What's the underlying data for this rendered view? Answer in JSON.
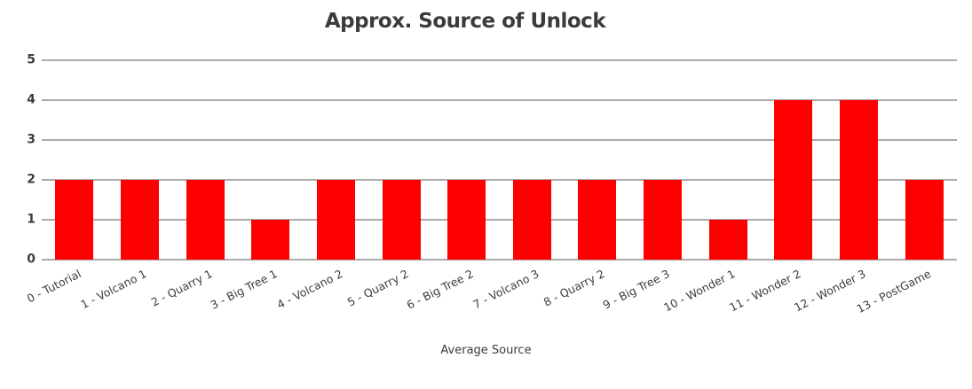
{
  "chart_data": {
    "type": "bar",
    "title": "Approx. Source of Unlock",
    "xlabel": "Average Source",
    "ylabel": "",
    "categories": [
      "0 - Tutorial",
      "1 - Volcano 1",
      "2 - Quarry 1",
      "3 - Big Tree 1",
      "4 - Volcano 2",
      "5 - Quarry 2",
      "6 - Big Tree 2",
      "7 - Volcano 3",
      "8 - Quarry 2",
      "9 - Big Tree 3",
      "10 - Wonder 1",
      "11 - Wonder 2",
      "12 - Wonder 3",
      "13 - PostGame"
    ],
    "values": [
      2,
      2,
      2,
      1,
      2,
      2,
      2,
      2,
      2,
      2,
      1,
      4,
      4,
      2
    ],
    "ylim": [
      0,
      5
    ],
    "yticks": [
      0,
      1,
      2,
      3,
      4,
      5
    ],
    "grid": true,
    "legend_position": "none",
    "colors": {
      "bar": "#ff0000",
      "grid": "#ababab",
      "tick_text": "#3d3d3d",
      "title_text": "#3b3b3b",
      "axis_title_text": "#3a3a3a",
      "background": "#ffffff"
    }
  }
}
